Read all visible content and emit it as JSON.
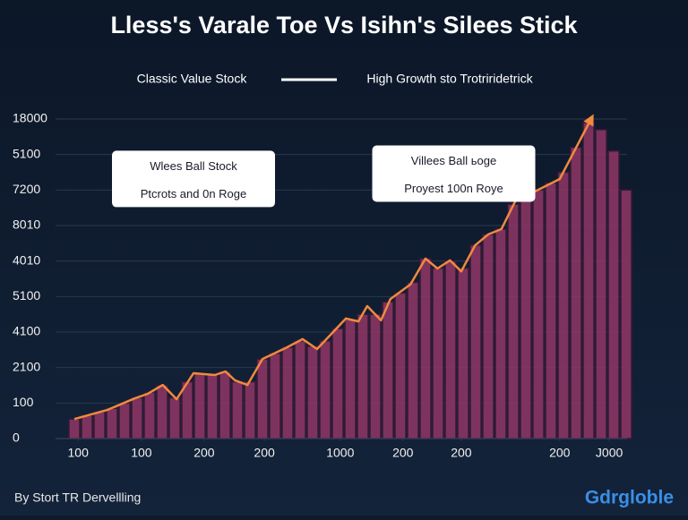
{
  "chart_data": {
    "type": "bar-line",
    "title": "Lless's Varale Toe Vs Isihn's Silees Stick",
    "footer": "By Stort TR Dervellling",
    "logo": "Gdrgloble",
    "legend": "top",
    "grid": true,
    "xlim": [
      -1,
      89
    ],
    "ylim": [
      0,
      9
    ],
    "xticks": [
      {
        "value": 0.6,
        "label": "100"
      },
      {
        "value": 10.7,
        "label": "100"
      },
      {
        "value": 20.7,
        "label": "200"
      },
      {
        "value": 30.3,
        "label": "200"
      },
      {
        "value": 42.4,
        "label": "1000"
      },
      {
        "value": 52.4,
        "label": "200"
      },
      {
        "value": 61.7,
        "label": "200"
      },
      {
        "value": 77.4,
        "label": "200"
      },
      {
        "value": 85.3,
        "label": "J000"
      }
    ],
    "yticks": [
      {
        "value": 0,
        "label": "0"
      },
      {
        "value": 1,
        "label": "100"
      },
      {
        "value": 2,
        "label": "2100"
      },
      {
        "value": 3,
        "label": "4100"
      },
      {
        "value": 4,
        "label": "5100"
      },
      {
        "value": 5,
        "label": "4010"
      },
      {
        "value": 6,
        "label": "8010"
      },
      {
        "value": 7,
        "label": "7200"
      },
      {
        "value": 8,
        "label": "5100"
      },
      {
        "value": 9,
        "label": "18000"
      }
    ],
    "series": [
      {
        "name": "Classic Value Stock",
        "color": "#8a3563",
        "x": [
          0,
          2,
          4,
          6,
          8,
          10,
          12,
          14,
          16,
          18,
          20,
          22,
          24,
          26,
          28,
          30,
          32,
          34,
          36,
          38,
          40,
          42,
          44,
          46,
          48,
          50,
          52,
          54,
          56,
          58,
          60,
          62,
          64,
          66,
          68,
          70,
          72,
          74,
          76,
          78,
          80,
          82,
          84,
          86,
          88
        ],
        "values": [
          0.55,
          0.65,
          0.75,
          0.85,
          1.0,
          1.15,
          1.3,
          1.5,
          1.15,
          1.6,
          1.82,
          1.8,
          1.88,
          1.6,
          1.6,
          2.24,
          2.4,
          2.57,
          2.75,
          2.6,
          2.75,
          3.1,
          3.35,
          3.5,
          3.5,
          3.85,
          4.1,
          4.4,
          5.07,
          4.8,
          5.0,
          4.8,
          5.45,
          5.75,
          5.9,
          6.6,
          6.8,
          7.0,
          7.2,
          7.5,
          8.2,
          8.9,
          8.7,
          8.1,
          7.0
        ]
      },
      {
        "name": "High Growth sto Trotriridetrick",
        "color": "#f08a3e",
        "x": [
          0,
          5.3,
          9.6,
          11.7,
          14.1,
          16.3,
          19,
          22.4,
          24.1,
          25.6,
          27.6,
          30,
          33.9,
          36.4,
          38.7,
          41,
          43.3,
          45.3,
          46.7,
          48.9,
          50.4,
          53.6,
          56,
          57.9,
          59.9,
          61.7,
          63.9,
          66,
          68.1,
          70.3,
          77.4,
          82.4
        ],
        "values": [
          0.55,
          0.81,
          1.13,
          1.26,
          1.51,
          1.11,
          1.84,
          1.79,
          1.89,
          1.64,
          1.51,
          2.24,
          2.57,
          2.8,
          2.52,
          2.95,
          3.38,
          3.3,
          3.73,
          3.33,
          3.93,
          4.34,
          5.07,
          4.79,
          5.02,
          4.71,
          5.44,
          5.75,
          5.9,
          6.68,
          7.31,
          9.0
        ]
      }
    ],
    "annotations": [
      {
        "lines": [
          "Wlees Ball Stock",
          "Ptcrots and 0n Roge"
        ],
        "x": 19,
        "y": 7.3
      },
      {
        "lines": [
          "Villees Ball ьoge",
          "Proyest 100n Roye"
        ],
        "x": 60.5,
        "y": 7.45
      }
    ]
  }
}
